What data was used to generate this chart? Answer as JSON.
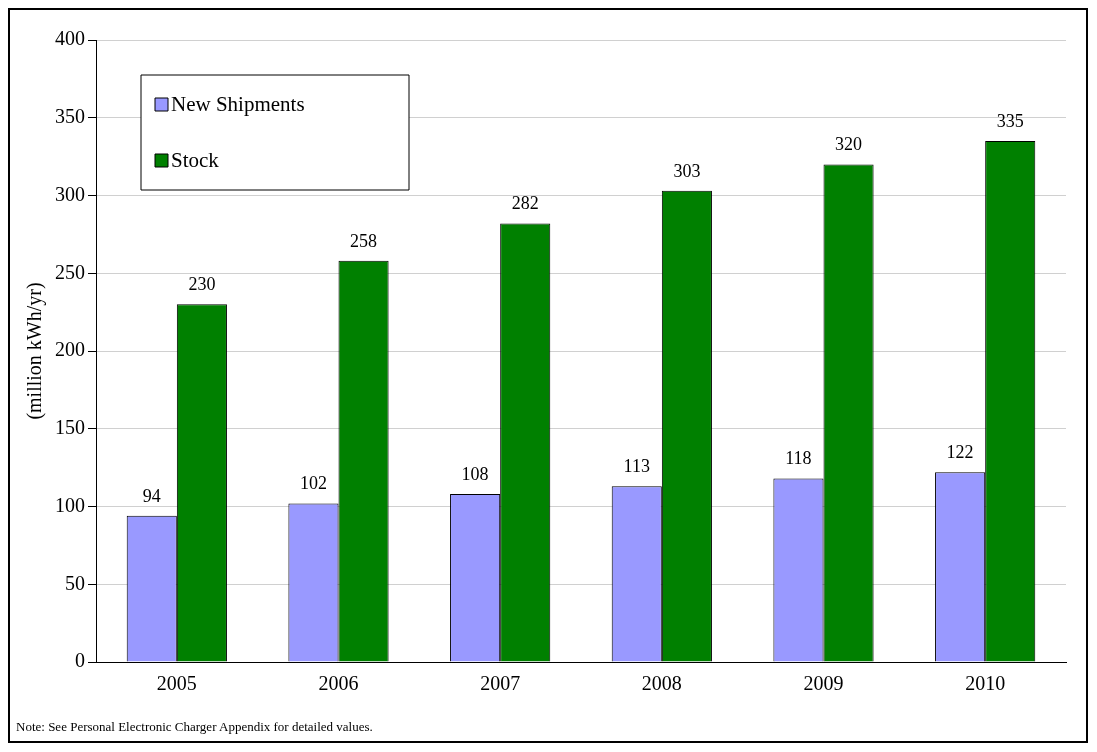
{
  "chart_data": {
    "type": "bar",
    "ylabel": "(million kWh/yr)",
    "categories": [
      "2005",
      "2006",
      "2007",
      "2008",
      "2009",
      "2010"
    ],
    "series": [
      {
        "name": "New Shipments",
        "color": "#9999ff",
        "values": [
          94,
          102,
          108,
          113,
          118,
          122
        ]
      },
      {
        "name": "Stock",
        "color": "#008000",
        "values": [
          230,
          258,
          282,
          303,
          320,
          335
        ]
      }
    ],
    "ylim": [
      0,
      400
    ],
    "yticks": [
      0,
      50,
      100,
      150,
      200,
      250,
      300,
      350,
      400
    ],
    "grid": "y",
    "legend": "top left",
    "data_labels": true,
    "annotations": [
      "Note: See Personal Electronic Charger Appendix for detailed values."
    ]
  }
}
